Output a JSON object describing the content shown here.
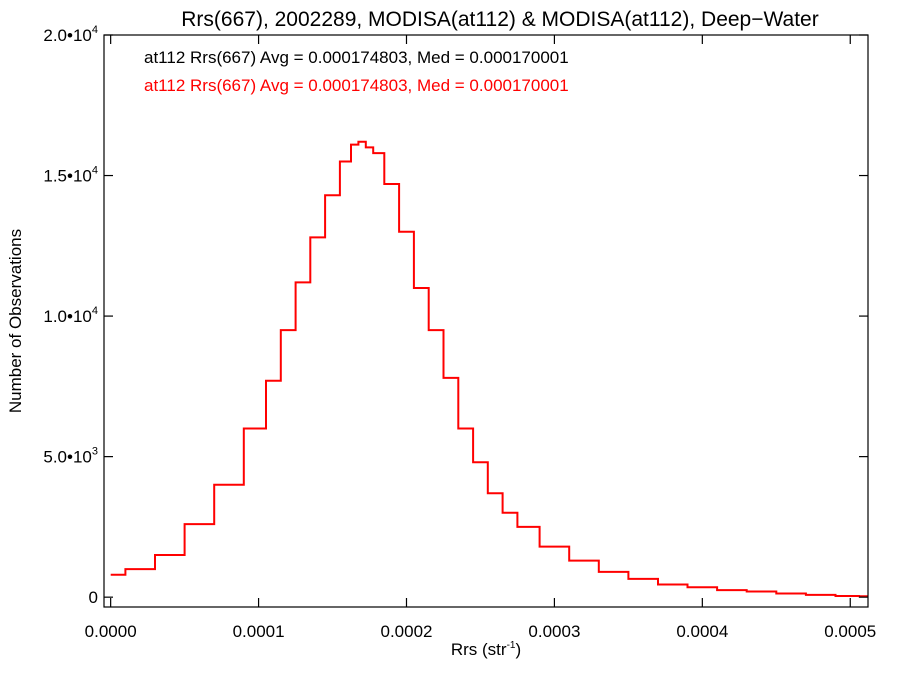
{
  "chart_data": {
    "type": "histogram",
    "title": "Rrs(667), 2002289, MODISA(at112) & MODISA(at112), Deep−Water",
    "xlabel": "Rrs (str",
    "xlabel_sup": "-1",
    "xlabel_end": ")",
    "ylabel": "Number of Observations",
    "xlim": [
      -4.5e-06,
      0.000512
    ],
    "ylim": [
      -350,
      20000
    ],
    "x_ticks": [
      {
        "value": 0.0,
        "label": "0.0000"
      },
      {
        "value": 0.0001,
        "label": "0.0001"
      },
      {
        "value": 0.0002,
        "label": "0.0002"
      },
      {
        "value": 0.0003,
        "label": "0.0003"
      },
      {
        "value": 0.0004,
        "label": "0.0004"
      },
      {
        "value": 0.0005,
        "label": "0.0005"
      }
    ],
    "y_ticks": [
      {
        "value": 0,
        "mant": "0",
        "exp": ""
      },
      {
        "value": 5000,
        "mant": "5.0•10",
        "exp": "3"
      },
      {
        "value": 10000,
        "mant": "1.0•10",
        "exp": "4"
      },
      {
        "value": 15000,
        "mant": "1.5•10",
        "exp": "4"
      },
      {
        "value": 20000,
        "mant": "2.0•10",
        "exp": "4"
      }
    ],
    "legend": [
      {
        "text": "at112 Rrs(667) Avg = 0.000174803, Med = 0.000170001",
        "color": "#000000"
      },
      {
        "text": "at112 Rrs(667) Avg = 0.000174803, Med = 0.000170001",
        "color": "#ff0000"
      }
    ],
    "series": [
      {
        "color": "#ff0000",
        "x": [
          0.0,
          2e-05,
          4e-05,
          6e-05,
          8e-05,
          0.0001,
          0.00011,
          0.00012,
          0.00013,
          0.00014,
          0.00015,
          0.00016,
          0.000165,
          0.00017,
          0.000175,
          0.00018,
          0.00019,
          0.0002,
          0.00021,
          0.00022,
          0.00023,
          0.00024,
          0.00025,
          0.00026,
          0.00027,
          0.00028,
          0.0003,
          0.00032,
          0.00034,
          0.00036,
          0.00038,
          0.0004,
          0.00042,
          0.00044,
          0.00046,
          0.00048,
          0.0005,
          0.000512
        ],
        "y": [
          800,
          1000,
          1500,
          2600,
          4000,
          6000,
          7700,
          9500,
          11200,
          12800,
          14300,
          15500,
          16100,
          16200,
          16000,
          15800,
          14700,
          13000,
          11000,
          9500,
          7800,
          6000,
          4800,
          3700,
          3000,
          2500,
          1800,
          1300,
          900,
          650,
          450,
          350,
          250,
          200,
          130,
          80,
          40,
          30
        ]
      }
    ]
  }
}
